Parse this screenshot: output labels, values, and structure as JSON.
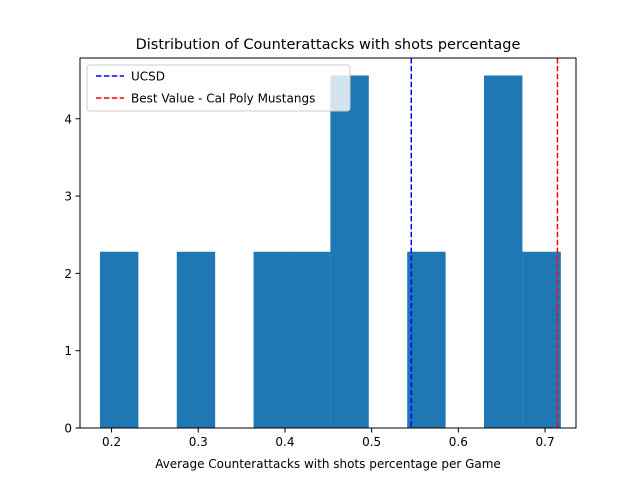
{
  "chart_data": {
    "type": "bar",
    "title": "Distribution of Counterattacks with shots percentage",
    "xlabel": "Average Counterattacks with shots percentage per Game",
    "ylabel": "",
    "xlim": [
      0.1636,
      0.7357
    ],
    "ylim": [
      0,
      4.786
    ],
    "x_ticks": [
      0.2,
      0.3,
      0.4,
      0.5,
      0.6,
      0.7
    ],
    "x_tick_labels": [
      "0.2",
      "0.3",
      "0.4",
      "0.5",
      "0.6",
      "0.7"
    ],
    "y_ticks": [
      0,
      1,
      2,
      3,
      4
    ],
    "y_tick_labels": [
      "0",
      "1",
      "2",
      "3",
      "4"
    ],
    "bar_color": "#1f77b4",
    "bins": [
      {
        "x0": 0.1866,
        "x1": 0.2309,
        "value": 2.28
      },
      {
        "x0": 0.2309,
        "x1": 0.2752,
        "value": 0
      },
      {
        "x0": 0.2752,
        "x1": 0.3195,
        "value": 2.28
      },
      {
        "x0": 0.3195,
        "x1": 0.3638,
        "value": 0
      },
      {
        "x0": 0.3638,
        "x1": 0.4081,
        "value": 2.28
      },
      {
        "x0": 0.4081,
        "x1": 0.4524,
        "value": 2.28
      },
      {
        "x0": 0.4524,
        "x1": 0.4967,
        "value": 4.56
      },
      {
        "x0": 0.4967,
        "x1": 0.541,
        "value": 0
      },
      {
        "x0": 0.541,
        "x1": 0.5853,
        "value": 2.28
      },
      {
        "x0": 0.5853,
        "x1": 0.6296,
        "value": 0
      },
      {
        "x0": 0.6296,
        "x1": 0.6739,
        "value": 4.56
      },
      {
        "x0": 0.6739,
        "x1": 0.7182,
        "value": 2.28
      }
    ],
    "vlines": [
      {
        "name": "UCSD",
        "x": 0.5457,
        "color": "#0000ff"
      },
      {
        "name": "Best Value - Cal Poly Mustangs",
        "x": 0.7143,
        "color": "#ff0000"
      }
    ],
    "legend": {
      "placement": "top-left",
      "entries": [
        "UCSD",
        "Best Value - Cal Poly Mustangs"
      ]
    },
    "grid": false
  }
}
